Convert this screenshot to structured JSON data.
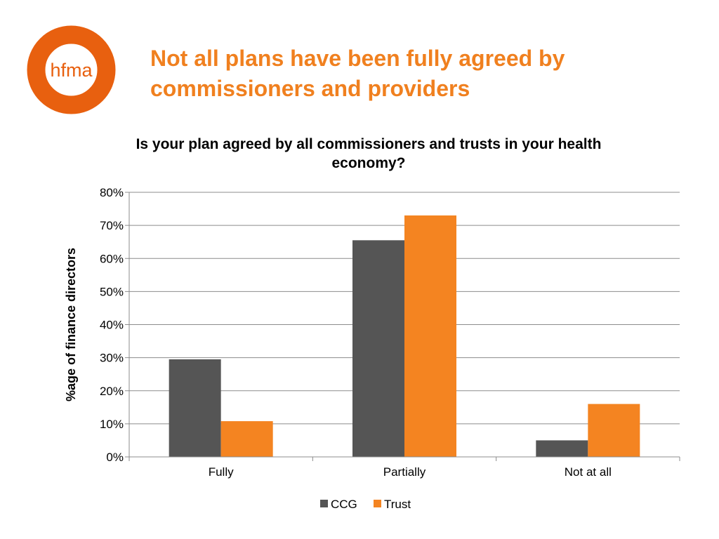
{
  "logo": {
    "text": "hfma",
    "color": "#E8600F"
  },
  "slide_title": "Not all plans have been fully agreed by commissioners and providers",
  "chart_data": {
    "type": "bar",
    "title": "Is your plan agreed by all commissioners and trusts in your health economy?",
    "xlabel": "",
    "ylabel": "%age of finance directors",
    "categories": [
      "Fully",
      "Partially",
      "Not at all"
    ],
    "series": [
      {
        "name": "CCG",
        "values": [
          29.5,
          65.5,
          5
        ],
        "color": "#555555"
      },
      {
        "name": "Trust",
        "values": [
          10.8,
          73,
          16
        ],
        "color": "#F48421"
      }
    ],
    "ylim": [
      0,
      80
    ],
    "yticks": [
      0,
      10,
      20,
      30,
      40,
      50,
      60,
      70,
      80
    ],
    "ytick_format": "%",
    "grid": true,
    "legend": "bottom"
  }
}
